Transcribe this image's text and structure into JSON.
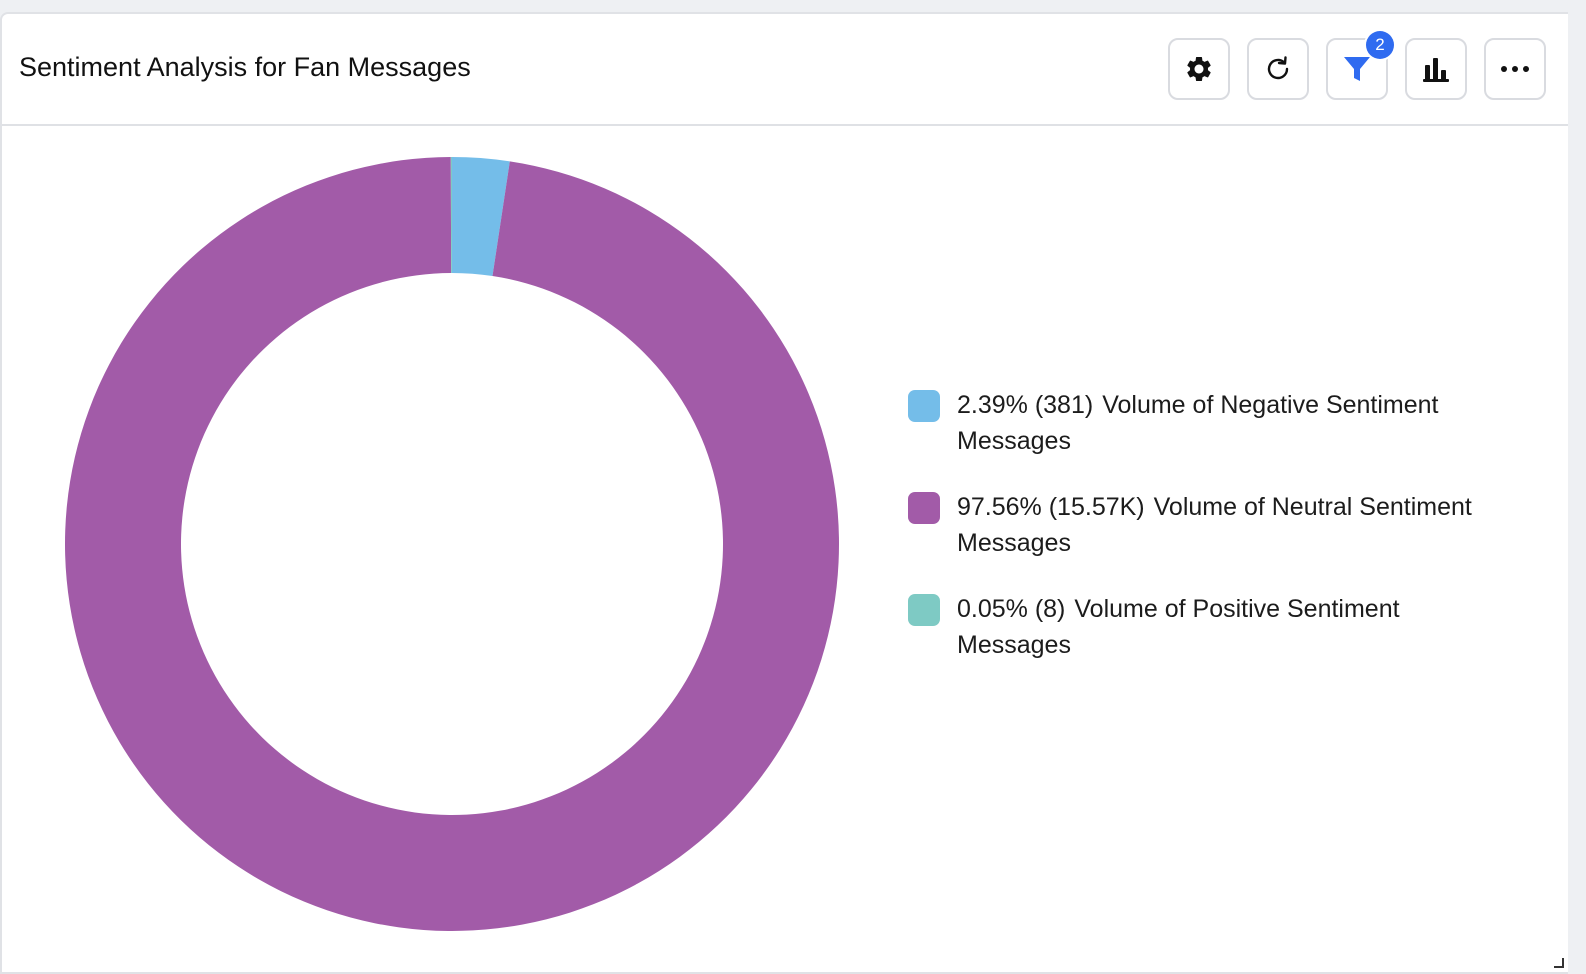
{
  "widget": {
    "title": "Sentiment Analysis for Fan Messages",
    "toolbar": {
      "settings_icon": "gear-icon",
      "refresh_icon": "refresh-icon",
      "filter_icon": "filter-icon",
      "filter_badge": "2",
      "chart_type_icon": "bar-chart-icon",
      "more_icon": "more-icon"
    }
  },
  "colors": {
    "negative": "#74bde9",
    "neutral": "#a25ba8",
    "positive": "#7ecac4",
    "filter_accent": "#2f6bf0"
  },
  "chart_data": {
    "type": "pie",
    "variant": "donut",
    "title": "",
    "legend_placement": "right",
    "categories": [
      "Volume of Negative Sentiment Messages",
      "Volume of Neutral Sentiment Messages",
      "Volume of Positive Sentiment Messages"
    ],
    "values": [
      381,
      15570,
      8
    ],
    "percentages": [
      2.39,
      97.56,
      0.05
    ],
    "legend": [
      {
        "value_text": "2.39% (381)",
        "label": "Volume of Negative Sentiment Messages",
        "color": "#74bde9"
      },
      {
        "value_text": "97.56% (15.57K)",
        "label": "Volume of Neutral Sentiment Messages",
        "color": "#a25ba8"
      },
      {
        "value_text": "0.05% (8)",
        "label": "Volume of Positive Sentiment Messages",
        "color": "#7ecac4"
      }
    ]
  }
}
